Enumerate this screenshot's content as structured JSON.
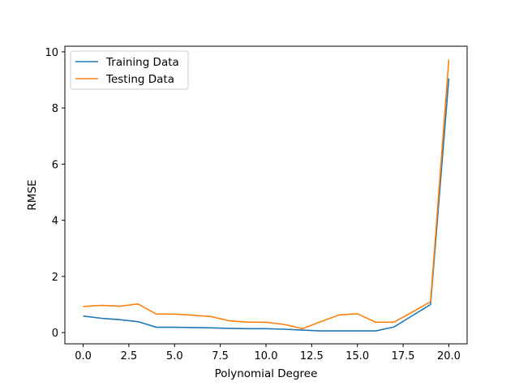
{
  "chart_data": {
    "type": "line",
    "title": "",
    "xlabel": "Polynomial Degree",
    "ylabel": "RMSE",
    "xlim": [
      -1,
      21
    ],
    "ylim": [
      -0.4,
      10.2
    ],
    "xticks": [
      0,
      2.5,
      5,
      7.5,
      10,
      12.5,
      15,
      17.5,
      20
    ],
    "xtick_labels": [
      "0.0",
      "2.5",
      "5.0",
      "7.5",
      "10.0",
      "12.5",
      "15.0",
      "17.5",
      "20.0"
    ],
    "yticks": [
      0,
      2,
      4,
      6,
      8,
      10
    ],
    "ytick_labels": [
      "0",
      "2",
      "4",
      "6",
      "8",
      "10"
    ],
    "grid": false,
    "legend_position": "top-left",
    "x": [
      0,
      1,
      2,
      3,
      4,
      5,
      6,
      7,
      8,
      9,
      10,
      11,
      12,
      13,
      14,
      15,
      16,
      17,
      18,
      19,
      20
    ],
    "series": [
      {
        "name": "Training Data",
        "color": "#1f77b4",
        "values": [
          0.59,
          0.51,
          0.46,
          0.39,
          0.19,
          0.19,
          0.18,
          0.17,
          0.15,
          0.14,
          0.14,
          0.12,
          0.09,
          0.06,
          0.06,
          0.06,
          0.06,
          0.2,
          0.6,
          1.0,
          9.05
        ]
      },
      {
        "name": "Testing Data",
        "color": "#ff7f0e",
        "values": [
          0.93,
          0.97,
          0.94,
          1.02,
          0.66,
          0.66,
          0.62,
          0.57,
          0.42,
          0.37,
          0.37,
          0.29,
          0.14,
          0.39,
          0.63,
          0.67,
          0.37,
          0.37,
          0.73,
          1.1,
          9.72
        ]
      }
    ]
  }
}
